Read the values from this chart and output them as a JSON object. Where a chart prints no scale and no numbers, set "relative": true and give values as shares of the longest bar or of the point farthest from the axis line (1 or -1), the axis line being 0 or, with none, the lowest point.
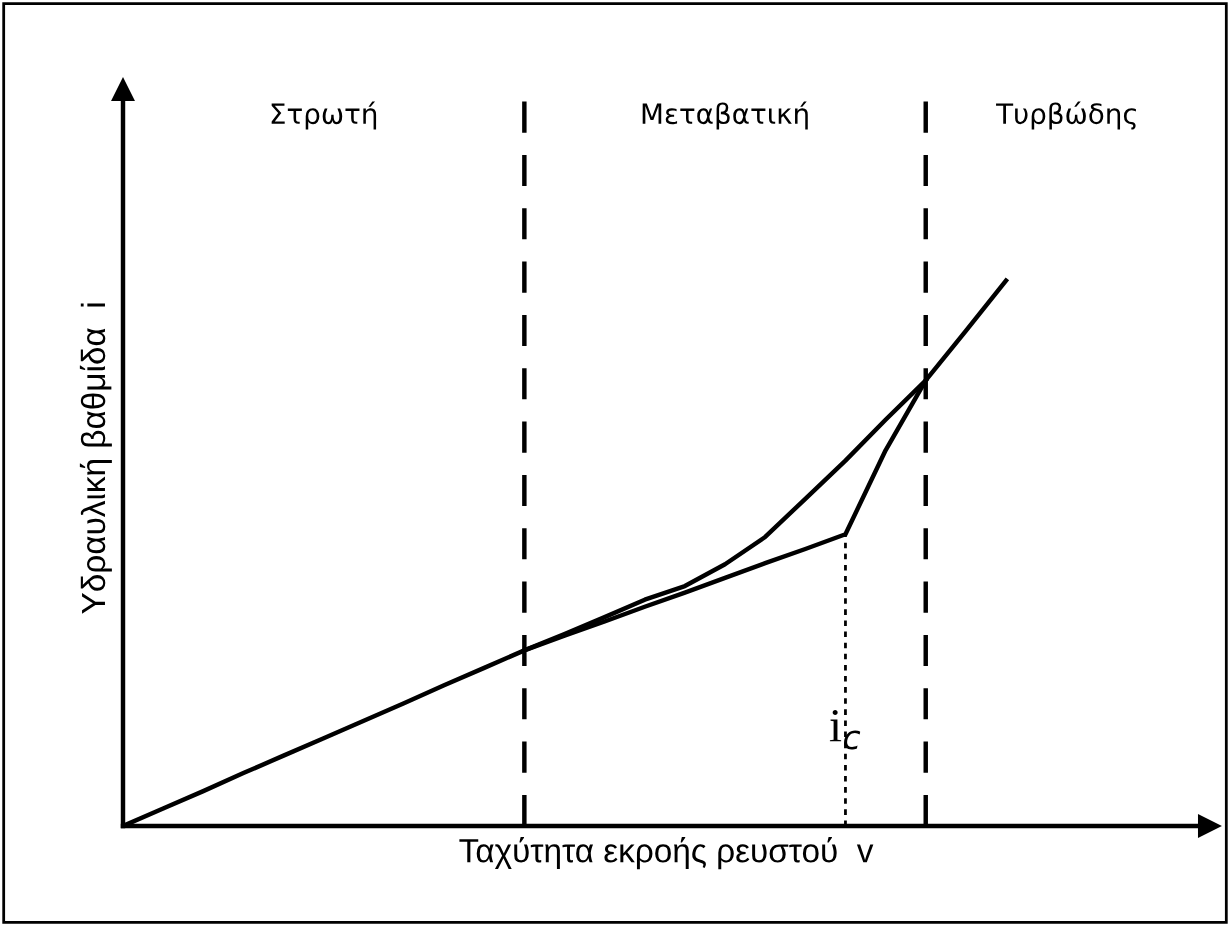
{
  "chart_data": {
    "type": "line",
    "relative": true,
    "xlabel": "Ταχύτητα εκροής ρευστού  v",
    "ylabel": "Υδραυλική βαθμίδα  i",
    "tick_labels": false,
    "legend": false,
    "marker": "none",
    "line_style": "solid",
    "categories": [
      null,
      null,
      null,
      null,
      null,
      null,
      null,
      null,
      null,
      null,
      null,
      null,
      null,
      null,
      null,
      null,
      null,
      null,
      null,
      null,
      null,
      null,
      null
    ],
    "series": [
      {
        "color": "#000000",
        "values": [
          0,
          0.032,
          0.064,
          0.097,
          0.129,
          0.161,
          0.193,
          0.225,
          0.258,
          0.29,
          0.322,
          0.349,
          0.375,
          0.402,
          0.428,
          0.455,
          0.482,
          0.508,
          0.535,
          0.689,
          0.817,
          0.908,
          1.0
        ]
      },
      {
        "color": "#000000",
        "values": [
          null,
          null,
          null,
          null,
          null,
          null,
          null,
          null,
          null,
          null,
          0.322,
          0.352,
          0.383,
          0.415,
          0.44,
          0.48,
          0.53,
          0.6,
          0.67,
          0.745,
          0.817,
          null,
          null
        ]
      }
    ],
    "annotations": [
      "Στρωτή",
      "Μεταβατική",
      "Τυρβώδης",
      "i$_{c}$"
    ]
  }
}
